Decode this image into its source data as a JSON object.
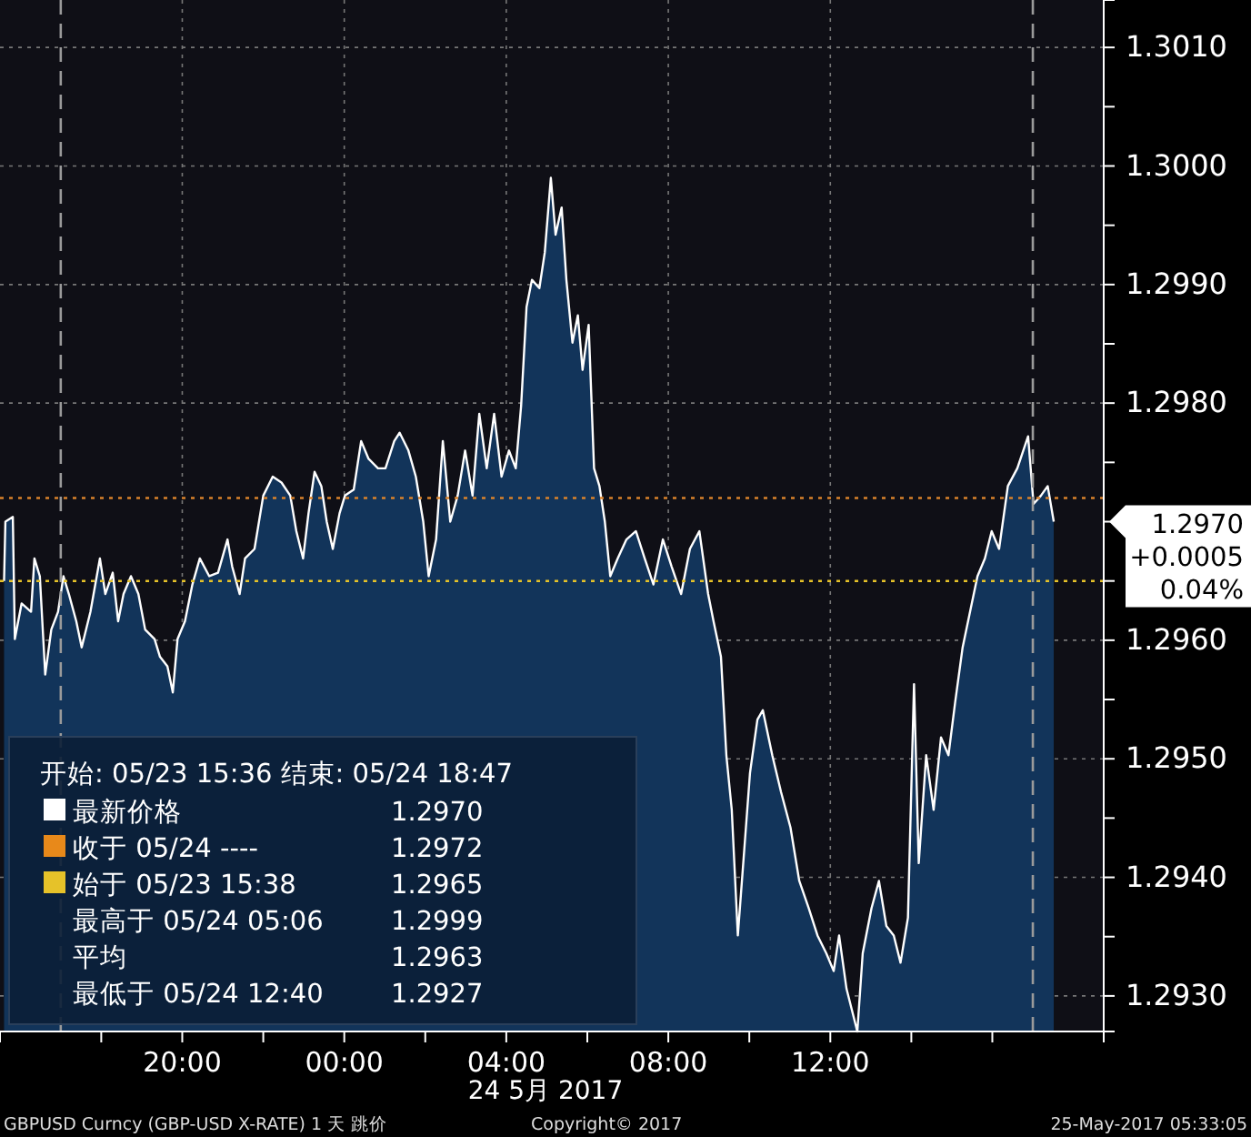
{
  "chart_data": {
    "type": "area",
    "x": [
      "2017-05-23T15:36",
      "2017-05-23T15:38",
      "2017-05-23T15:49",
      "2017-05-23T15:52",
      "2017-05-23T16:02",
      "2017-05-23T16:16",
      "2017-05-23T16:21",
      "2017-05-23T16:29",
      "2017-05-23T16:37",
      "2017-05-23T16:46",
      "2017-05-23T16:56",
      "2017-05-23T17:04",
      "2017-05-23T17:12",
      "2017-05-23T17:23",
      "2017-05-23T17:31",
      "2017-05-23T17:44",
      "2017-05-23T17:58",
      "2017-05-23T18:06",
      "2017-05-23T18:17",
      "2017-05-23T18:25",
      "2017-05-23T18:33",
      "2017-05-23T18:44",
      "2017-05-23T18:55",
      "2017-05-23T19:05",
      "2017-05-23T19:19",
      "2017-05-23T19:27",
      "2017-05-23T19:38",
      "2017-05-23T19:46",
      "2017-05-23T19:53",
      "2017-05-23T20:04",
      "2017-05-23T20:15",
      "2017-05-23T20:26",
      "2017-05-23T20:40",
      "2017-05-23T20:53",
      "2017-05-23T21:07",
      "2017-05-23T21:14",
      "2017-05-23T21:25",
      "2017-05-23T21:33",
      "2017-05-23T21:47",
      "2017-05-23T22:00",
      "2017-05-23T22:14",
      "2017-05-23T22:27",
      "2017-05-23T22:40",
      "2017-05-23T22:49",
      "2017-05-23T22:59",
      "2017-05-23T23:07",
      "2017-05-23T23:16",
      "2017-05-23T23:26",
      "2017-05-23T23:34",
      "2017-05-23T23:43",
      "2017-05-23T23:53",
      "2017-05-24T00:01",
      "2017-05-24T00:14",
      "2017-05-24T00:25",
      "2017-05-24T00:36",
      "2017-05-24T00:50",
      "2017-05-24T01:01",
      "2017-05-24T01:14",
      "2017-05-24T01:22",
      "2017-05-24T01:35",
      "2017-05-24T01:46",
      "2017-05-24T01:57",
      "2017-05-24T02:05",
      "2017-05-24T02:16",
      "2017-05-24T02:26",
      "2017-05-24T02:37",
      "2017-05-24T02:48",
      "2017-05-24T02:59",
      "2017-05-24T03:10",
      "2017-05-24T03:20",
      "2017-05-24T03:31",
      "2017-05-24T03:42",
      "2017-05-24T03:53",
      "2017-05-24T04:04",
      "2017-05-24T04:14",
      "2017-05-24T04:22",
      "2017-05-24T04:30",
      "2017-05-24T04:38",
      "2017-05-24T04:49",
      "2017-05-24T04:57",
      "2017-05-24T05:06",
      "2017-05-24T05:13",
      "2017-05-24T05:22",
      "2017-05-24T05:29",
      "2017-05-24T05:38",
      "2017-05-24T05:46",
      "2017-05-24T05:53",
      "2017-05-24T06:02",
      "2017-05-24T06:10",
      "2017-05-24T06:18",
      "2017-05-24T06:26",
      "2017-05-24T06:34",
      "2017-05-24T06:45",
      "2017-05-24T06:58",
      "2017-05-24T07:12",
      "2017-05-24T07:25",
      "2017-05-24T07:38",
      "2017-05-24T07:52",
      "2017-05-24T08:05",
      "2017-05-24T08:19",
      "2017-05-24T08:32",
      "2017-05-24T08:46",
      "2017-05-24T08:59",
      "2017-05-24T09:07",
      "2017-05-24T09:18",
      "2017-05-24T09:26",
      "2017-05-24T09:34",
      "2017-05-24T09:43",
      "2017-05-24T09:53",
      "2017-05-24T10:01",
      "2017-05-24T10:12",
      "2017-05-24T10:20",
      "2017-05-24T10:34",
      "2017-05-24T10:47",
      "2017-05-24T11:01",
      "2017-05-24T11:14",
      "2017-05-24T11:28",
      "2017-05-24T11:41",
      "2017-05-24T11:54",
      "2017-05-24T12:05",
      "2017-05-24T12:13",
      "2017-05-24T12:24",
      "2017-05-24T12:40",
      "2017-05-24T12:48",
      "2017-05-24T13:01",
      "2017-05-24T13:12",
      "2017-05-24T13:23",
      "2017-05-24T13:34",
      "2017-05-24T13:44",
      "2017-05-24T13:55",
      "2017-05-24T14:04",
      "2017-05-24T14:11",
      "2017-05-24T14:22",
      "2017-05-24T14:33",
      "2017-05-24T14:44",
      "2017-05-24T14:55",
      "2017-05-24T15:05",
      "2017-05-24T15:16",
      "2017-05-24T15:27",
      "2017-05-24T15:38",
      "2017-05-24T15:49",
      "2017-05-24T15:59",
      "2017-05-24T16:10",
      "2017-05-24T16:23",
      "2017-05-24T16:37",
      "2017-05-24T16:53",
      "2017-05-24T17:01",
      "2017-05-24T17:12",
      "2017-05-24T17:22",
      "2017-05-24T17:31"
    ],
    "series": [
      {
        "color": "#12345a",
        "values": [
          1.2965,
          1.297,
          1.29704,
          1.29601,
          1.29631,
          1.29624,
          1.29669,
          1.29654,
          1.29571,
          1.29609,
          1.29624,
          1.29654,
          1.29639,
          1.29616,
          1.29594,
          1.29624,
          1.29669,
          1.29639,
          1.29657,
          1.29616,
          1.29639,
          1.29654,
          1.29639,
          1.29609,
          1.29601,
          1.29586,
          1.29578,
          1.29556,
          1.29601,
          1.29616,
          1.29647,
          1.29669,
          1.29654,
          1.29657,
          1.29685,
          1.29662,
          1.29639,
          1.29669,
          1.29677,
          1.29722,
          1.29738,
          1.29733,
          1.29722,
          1.29692,
          1.29669,
          1.29707,
          1.29742,
          1.2973,
          1.297,
          1.29677,
          1.29707,
          1.29722,
          1.29727,
          1.29768,
          1.29753,
          1.29745,
          1.29745,
          1.29768,
          1.29775,
          1.2976,
          1.29738,
          1.297,
          1.29654,
          1.29685,
          1.29768,
          1.297,
          1.29722,
          1.2976,
          1.29722,
          1.29791,
          1.29745,
          1.29791,
          1.29738,
          1.2976,
          1.29745,
          1.29798,
          1.29881,
          1.29904,
          1.29897,
          1.29927,
          1.2999,
          1.29942,
          1.29965,
          1.29904,
          1.29851,
          1.29874,
          1.29828,
          1.29866,
          1.29745,
          1.2973,
          1.297,
          1.29654,
          1.29669,
          1.29685,
          1.29692,
          1.29669,
          1.29647,
          1.29685,
          1.29662,
          1.29639,
          1.29677,
          1.29692,
          1.29639,
          1.29616,
          1.29586,
          1.29503,
          1.29457,
          1.29351,
          1.29427,
          1.29488,
          1.29533,
          1.29541,
          1.29503,
          1.29472,
          1.29442,
          1.29397,
          1.29374,
          1.29351,
          1.29336,
          1.29321,
          1.29351,
          1.29306,
          1.2927,
          1.29336,
          1.29374,
          1.29397,
          1.29359,
          1.29351,
          1.29328,
          1.29366,
          1.29563,
          1.29412,
          1.29503,
          1.29457,
          1.29518,
          1.29503,
          1.29548,
          1.29594,
          1.29624,
          1.29654,
          1.29669,
          1.29692,
          1.29677,
          1.2973,
          1.29745,
          1.29772,
          1.29715,
          1.29722,
          1.2973,
          1.297
        ]
      }
    ],
    "xlim": [
      "2017-05-23T15:30",
      "2017-05-24T18:45"
    ],
    "xticks": [
      {
        "value": "2017-05-23T18:00",
        "label": null
      },
      {
        "value": "2017-05-23T20:00",
        "label": "20:00"
      },
      {
        "value": "2017-05-23T22:00",
        "label": null
      },
      {
        "value": "2017-05-24T00:00",
        "label": "00:00"
      },
      {
        "value": "2017-05-24T02:00",
        "label": null
      },
      {
        "value": "2017-05-24T04:00",
        "label": "04:00"
      },
      {
        "value": "2017-05-24T06:00",
        "label": null
      },
      {
        "value": "2017-05-24T08:00",
        "label": "08:00"
      },
      {
        "value": "2017-05-24T10:00",
        "label": null
      },
      {
        "value": "2017-05-24T12:00",
        "label": "12:00"
      },
      {
        "value": "2017-05-24T14:00",
        "label": null
      },
      {
        "value": "2017-05-24T16:00",
        "label": null
      }
    ],
    "ylim": [
      1.2927,
      1.3014
    ],
    "yticks": [
      {
        "value": 1.293,
        "label": "1.2930"
      },
      {
        "value": 1.2935,
        "label": null
      },
      {
        "value": 1.294,
        "label": "1.2940"
      },
      {
        "value": 1.2945,
        "label": null
      },
      {
        "value": 1.295,
        "label": "1.2950"
      },
      {
        "value": 1.2955,
        "label": null
      },
      {
        "value": 1.296,
        "label": "1.2960"
      },
      {
        "value": 1.2965,
        "label": null
      },
      {
        "value": 1.297,
        "label": null
      },
      {
        "value": 1.2975,
        "label": null
      },
      {
        "value": 1.298,
        "label": "1.2980"
      },
      {
        "value": 1.2985,
        "label": null
      },
      {
        "value": 1.299,
        "label": "1.2990"
      },
      {
        "value": 1.2995,
        "label": null
      },
      {
        "value": 1.3,
        "label": "1.3000"
      },
      {
        "value": 1.3005,
        "label": null
      },
      {
        "value": 1.301,
        "label": "1.3010"
      }
    ],
    "grid": true,
    "ref_lines": [
      {
        "axis": "y",
        "value": 1.2972,
        "color": "#d9822b",
        "line_style": "dotted"
      },
      {
        "axis": "y",
        "value": 1.2965,
        "color": "#e6c229",
        "line_style": "dotted"
      },
      {
        "axis": "x",
        "value": "2017-05-23T17:00",
        "color": "#9a9a9a",
        "line_style": "dashed"
      },
      {
        "axis": "x",
        "value": "2017-05-24T17:00",
        "color": "#9a9a9a",
        "line_style": "dashed"
      }
    ],
    "annotations": [
      "开始: 05/23 15:36 结束: 05/24 18:47",
      "最新价格",
      "1.2970",
      "收于 05/24 ----",
      "1.2972",
      "始于 05/23 15:38",
      "1.2965",
      "最高于 05/24 05:06",
      "1.2999",
      "平均",
      "1.2963",
      "最低于 05/24 12:40",
      "1.2927",
      "24 5月 2017",
      "GBPUSD Curncy (GBP-USD X-RATE) 1 天  跳价",
      "Copyright© 2017",
      "25-May-2017 05:33:05",
      "1.2970",
      "+0.0005",
      "0.04%"
    ]
  }
}
